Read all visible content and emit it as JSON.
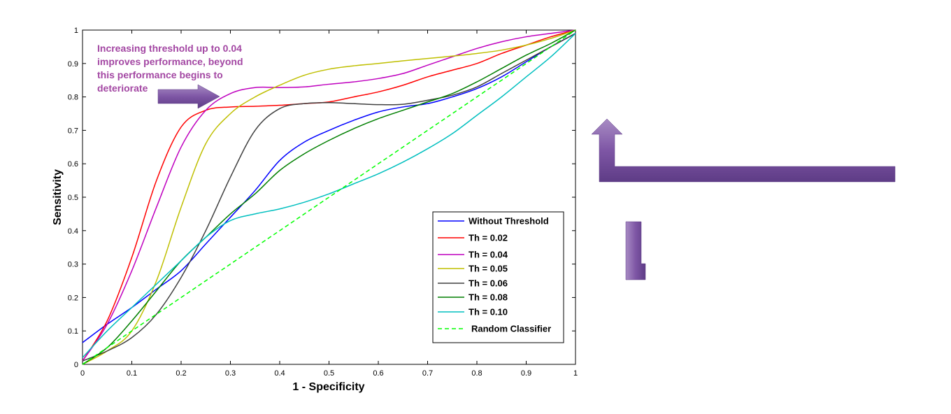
{
  "chart_data": {
    "type": "line",
    "xlabel": "1 - Specificity",
    "ylabel": "Sensitivity",
    "xlim": [
      0,
      1
    ],
    "ylim": [
      0,
      1
    ],
    "grid": false,
    "legend_position": "bottom-right",
    "x_ticks": [
      "0",
      "0.1",
      "0.2",
      "0.3",
      "0.4",
      "0.5",
      "0.6",
      "0.7",
      "0.8",
      "0.9",
      "1"
    ],
    "y_ticks": [
      "0",
      "0.1",
      "0.2",
      "0.3",
      "0.4",
      "0.5",
      "0.6",
      "0.7",
      "0.8",
      "0.9",
      "1"
    ],
    "annotation": {
      "lines": [
        "Increasing threshold up to 0.04",
        "improves performance, beyond",
        "this performance begins to",
        "deteriorate"
      ],
      "color": "#A347A3"
    },
    "arrow_color": "#8A64AD",
    "series": [
      {
        "name": "Without Threshold",
        "color": "#0000FF",
        "dash": "solid",
        "points": [
          [
            0,
            0.065
          ],
          [
            0.05,
            0.12
          ],
          [
            0.1,
            0.17
          ],
          [
            0.15,
            0.225
          ],
          [
            0.2,
            0.28
          ],
          [
            0.25,
            0.36
          ],
          [
            0.3,
            0.44
          ],
          [
            0.35,
            0.52
          ],
          [
            0.4,
            0.61
          ],
          [
            0.45,
            0.665
          ],
          [
            0.5,
            0.7
          ],
          [
            0.55,
            0.73
          ],
          [
            0.6,
            0.755
          ],
          [
            0.65,
            0.77
          ],
          [
            0.7,
            0.78
          ],
          [
            0.75,
            0.8
          ],
          [
            0.8,
            0.825
          ],
          [
            0.85,
            0.86
          ],
          [
            0.9,
            0.905
          ],
          [
            0.95,
            0.95
          ],
          [
            1,
            0.99
          ]
        ]
      },
      {
        "name": "Th = 0.02",
        "color": "#FF0000",
        "dash": "solid",
        "points": [
          [
            0,
            0.01
          ],
          [
            0.05,
            0.13
          ],
          [
            0.1,
            0.32
          ],
          [
            0.15,
            0.55
          ],
          [
            0.2,
            0.71
          ],
          [
            0.25,
            0.76
          ],
          [
            0.3,
            0.77
          ],
          [
            0.35,
            0.772
          ],
          [
            0.4,
            0.775
          ],
          [
            0.45,
            0.78
          ],
          [
            0.5,
            0.785
          ],
          [
            0.55,
            0.8
          ],
          [
            0.6,
            0.815
          ],
          [
            0.65,
            0.835
          ],
          [
            0.7,
            0.86
          ],
          [
            0.75,
            0.88
          ],
          [
            0.8,
            0.9
          ],
          [
            0.85,
            0.93
          ],
          [
            0.9,
            0.955
          ],
          [
            0.95,
            0.98
          ],
          [
            1,
            1
          ]
        ]
      },
      {
        "name": "Th = 0.04",
        "color": "#BF00BF",
        "dash": "solid",
        "points": [
          [
            0,
            0.01
          ],
          [
            0.05,
            0.12
          ],
          [
            0.1,
            0.28
          ],
          [
            0.15,
            0.47
          ],
          [
            0.2,
            0.65
          ],
          [
            0.25,
            0.76
          ],
          [
            0.3,
            0.81
          ],
          [
            0.35,
            0.828
          ],
          [
            0.4,
            0.828
          ],
          [
            0.45,
            0.83
          ],
          [
            0.5,
            0.838
          ],
          [
            0.55,
            0.845
          ],
          [
            0.6,
            0.855
          ],
          [
            0.65,
            0.87
          ],
          [
            0.7,
            0.895
          ],
          [
            0.75,
            0.92
          ],
          [
            0.8,
            0.945
          ],
          [
            0.85,
            0.965
          ],
          [
            0.9,
            0.98
          ],
          [
            0.95,
            0.99
          ],
          [
            1,
            1
          ]
        ]
      },
      {
        "name": "Th = 0.05",
        "color": "#BFBF00",
        "dash": "solid",
        "points": [
          [
            0,
            0.0
          ],
          [
            0.05,
            0.04
          ],
          [
            0.1,
            0.1
          ],
          [
            0.15,
            0.25
          ],
          [
            0.2,
            0.47
          ],
          [
            0.25,
            0.66
          ],
          [
            0.3,
            0.75
          ],
          [
            0.35,
            0.8
          ],
          [
            0.4,
            0.835
          ],
          [
            0.45,
            0.865
          ],
          [
            0.5,
            0.883
          ],
          [
            0.55,
            0.893
          ],
          [
            0.6,
            0.9
          ],
          [
            0.65,
            0.908
          ],
          [
            0.7,
            0.915
          ],
          [
            0.75,
            0.922
          ],
          [
            0.8,
            0.93
          ],
          [
            0.85,
            0.94
          ],
          [
            0.9,
            0.955
          ],
          [
            0.95,
            0.975
          ],
          [
            1,
            1
          ]
        ]
      },
      {
        "name": "Th = 0.06",
        "color": "#404040",
        "dash": "solid",
        "points": [
          [
            0,
            0.01
          ],
          [
            0.05,
            0.04
          ],
          [
            0.1,
            0.08
          ],
          [
            0.15,
            0.15
          ],
          [
            0.2,
            0.26
          ],
          [
            0.25,
            0.4
          ],
          [
            0.3,
            0.56
          ],
          [
            0.35,
            0.7
          ],
          [
            0.4,
            0.765
          ],
          [
            0.45,
            0.78
          ],
          [
            0.5,
            0.783
          ],
          [
            0.55,
            0.78
          ],
          [
            0.6,
            0.777
          ],
          [
            0.65,
            0.778
          ],
          [
            0.7,
            0.79
          ],
          [
            0.75,
            0.805
          ],
          [
            0.8,
            0.83
          ],
          [
            0.85,
            0.87
          ],
          [
            0.9,
            0.91
          ],
          [
            0.95,
            0.95
          ],
          [
            1,
            0.99
          ]
        ]
      },
      {
        "name": "Th = 0.08",
        "color": "#007F00",
        "dash": "solid",
        "points": [
          [
            0,
            0.0
          ],
          [
            0.05,
            0.05
          ],
          [
            0.1,
            0.13
          ],
          [
            0.15,
            0.22
          ],
          [
            0.2,
            0.31
          ],
          [
            0.25,
            0.38
          ],
          [
            0.3,
            0.45
          ],
          [
            0.35,
            0.51
          ],
          [
            0.4,
            0.58
          ],
          [
            0.45,
            0.63
          ],
          [
            0.5,
            0.67
          ],
          [
            0.55,
            0.705
          ],
          [
            0.6,
            0.735
          ],
          [
            0.65,
            0.76
          ],
          [
            0.7,
            0.785
          ],
          [
            0.75,
            0.81
          ],
          [
            0.8,
            0.845
          ],
          [
            0.85,
            0.885
          ],
          [
            0.9,
            0.925
          ],
          [
            0.95,
            0.96
          ],
          [
            1,
            1
          ]
        ]
      },
      {
        "name": "Th = 0.10",
        "color": "#00BFBF",
        "dash": "solid",
        "points": [
          [
            0,
            0.02
          ],
          [
            0.05,
            0.1
          ],
          [
            0.1,
            0.17
          ],
          [
            0.15,
            0.24
          ],
          [
            0.2,
            0.31
          ],
          [
            0.25,
            0.38
          ],
          [
            0.3,
            0.43
          ],
          [
            0.35,
            0.45
          ],
          [
            0.4,
            0.465
          ],
          [
            0.45,
            0.485
          ],
          [
            0.5,
            0.51
          ],
          [
            0.55,
            0.54
          ],
          [
            0.6,
            0.57
          ],
          [
            0.65,
            0.605
          ],
          [
            0.7,
            0.645
          ],
          [
            0.75,
            0.69
          ],
          [
            0.8,
            0.745
          ],
          [
            0.85,
            0.8
          ],
          [
            0.9,
            0.86
          ],
          [
            0.95,
            0.92
          ],
          [
            1,
            0.99
          ]
        ]
      },
      {
        "name": "Random Classifier",
        "color": "#00FF00",
        "dash": "dashed",
        "points": [
          [
            0,
            0
          ],
          [
            1,
            1
          ]
        ]
      }
    ]
  }
}
